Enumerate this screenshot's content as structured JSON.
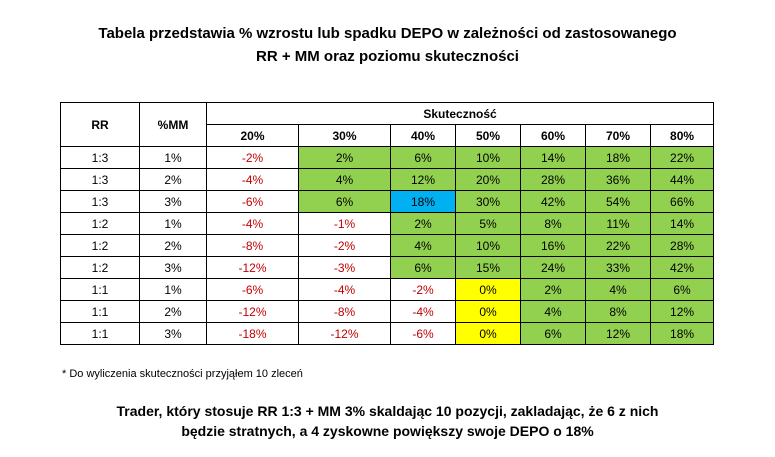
{
  "title": {
    "line1": "Tabela przedstawia % wzrostu lub spadku DEPO w zależności od zastosowanego",
    "line2": "RR + MM oraz poziomu skuteczności"
  },
  "table": {
    "col_rr": "RR",
    "col_mm": "%MM",
    "col_effectiveness": "Skuteczność",
    "levels": [
      "20%",
      "30%",
      "40%",
      "50%",
      "60%",
      "70%",
      "80%"
    ],
    "rows": [
      {
        "rr": "1:3",
        "mm": "1%",
        "values": [
          "-2%",
          "2%",
          "6%",
          "10%",
          "14%",
          "18%",
          "22%"
        ]
      },
      {
        "rr": "1:3",
        "mm": "2%",
        "values": [
          "-4%",
          "4%",
          "12%",
          "20%",
          "28%",
          "36%",
          "44%"
        ]
      },
      {
        "rr": "1:3",
        "mm": "3%",
        "values": [
          "-6%",
          "6%",
          "18%",
          "30%",
          "42%",
          "54%",
          "66%"
        ]
      },
      {
        "rr": "1:2",
        "mm": "1%",
        "values": [
          "-4%",
          "-1%",
          "2%",
          "5%",
          "8%",
          "11%",
          "14%"
        ]
      },
      {
        "rr": "1:2",
        "mm": "2%",
        "values": [
          "-8%",
          "-2%",
          "4%",
          "10%",
          "16%",
          "22%",
          "28%"
        ]
      },
      {
        "rr": "1:2",
        "mm": "3%",
        "values": [
          "-12%",
          "-3%",
          "6%",
          "15%",
          "24%",
          "33%",
          "42%"
        ]
      },
      {
        "rr": "1:1",
        "mm": "1%",
        "values": [
          "-6%",
          "-4%",
          "-2%",
          "0%",
          "2%",
          "4%",
          "6%"
        ]
      },
      {
        "rr": "1:1",
        "mm": "2%",
        "values": [
          "-12%",
          "-8%",
          "-4%",
          "0%",
          "4%",
          "8%",
          "12%"
        ]
      },
      {
        "rr": "1:1",
        "mm": "3%",
        "values": [
          "-18%",
          "-12%",
          "-6%",
          "0%",
          "6%",
          "12%",
          "18%"
        ]
      }
    ]
  },
  "colors": {
    "positive": "#92d050",
    "zero": "#ffff00",
    "highlight": "#00b0f0",
    "negative_text": "#c00000"
  },
  "note": "* Do wyliczenia skuteczności przyjąłem 10 zleceń",
  "summary": {
    "line1": "Trader, który stosuje RR 1:3 + MM 3% skaldając 10 pozycji, zakladając, że 6 z nich",
    "line2": "będzie stratnych, a 4 zyskowne powiększy swoje DEPO o 18%"
  }
}
